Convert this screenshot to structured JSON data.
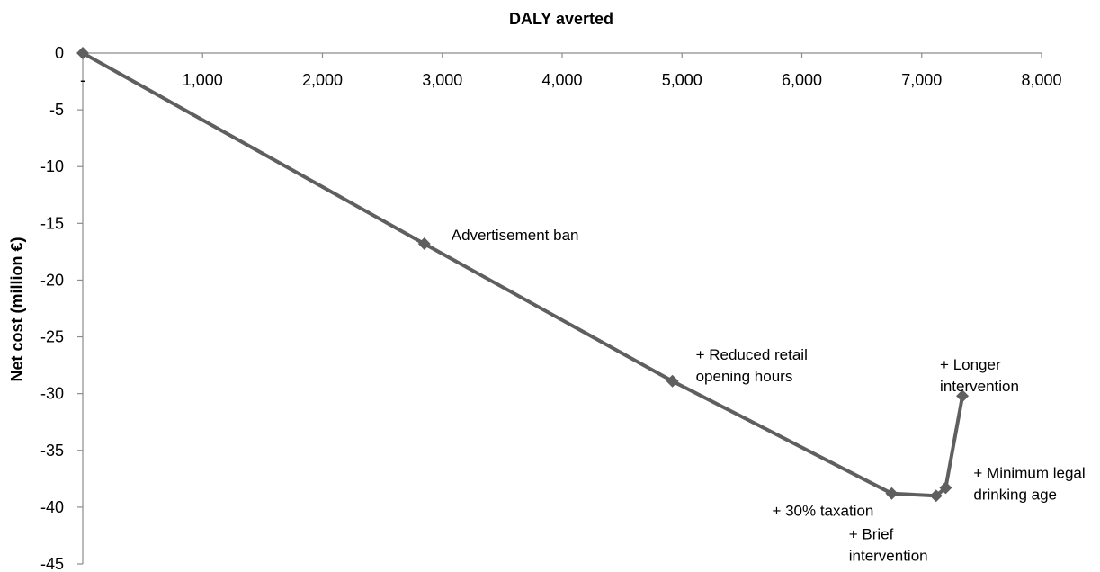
{
  "chart_data": {
    "type": "line",
    "title": "DALY  averted",
    "xlabel": "DALY  averted",
    "ylabel": "Net cost (million €)",
    "xlim": [
      0,
      8000
    ],
    "ylim": [
      -45,
      0
    ],
    "x_ticks": [
      {
        "value": 0,
        "label": "-"
      },
      {
        "value": 1000,
        "label": "1,000"
      },
      {
        "value": 2000,
        "label": "2,000"
      },
      {
        "value": 3000,
        "label": "3,000"
      },
      {
        "value": 4000,
        "label": "4,000"
      },
      {
        "value": 5000,
        "label": "5,000"
      },
      {
        "value": 6000,
        "label": "6,000"
      },
      {
        "value": 7000,
        "label": "7,000"
      },
      {
        "value": 8000,
        "label": "8,000"
      }
    ],
    "y_ticks": [
      {
        "value": 0,
        "label": "0"
      },
      {
        "value": -5,
        "label": "-5"
      },
      {
        "value": -10,
        "label": "-10"
      },
      {
        "value": -15,
        "label": "-15"
      },
      {
        "value": -20,
        "label": "-20"
      },
      {
        "value": -25,
        "label": "-25"
      },
      {
        "value": -30,
        "label": "-30"
      },
      {
        "value": -35,
        "label": "-35"
      },
      {
        "value": -40,
        "label": "-40"
      },
      {
        "value": -45,
        "label": "-45"
      }
    ],
    "grid": false,
    "legend": "none",
    "line_color": "#5f5f5f",
    "marker": "diamond",
    "series": [
      {
        "points": [
          {
            "x": 0,
            "y": 0,
            "label": []
          },
          {
            "x": 2850,
            "y": -16.8,
            "label": [
              "Advertisement ban"
            ]
          },
          {
            "x": 4920,
            "y": -28.9,
            "label": [
              "+ Reduced retail",
              "opening hours"
            ]
          },
          {
            "x": 6750,
            "y": -38.8,
            "label": [
              "+ 30% taxation"
            ]
          },
          {
            "x": 7120,
            "y": -39.0,
            "label": [
              "+ Brief",
              "intervention"
            ]
          },
          {
            "x": 7200,
            "y": -38.3,
            "label": [
              "+ Minimum legal",
              "drinking age"
            ]
          },
          {
            "x": 7340,
            "y": -30.2,
            "label": [
              "+ Longer",
              "intervention"
            ]
          }
        ]
      }
    ]
  }
}
